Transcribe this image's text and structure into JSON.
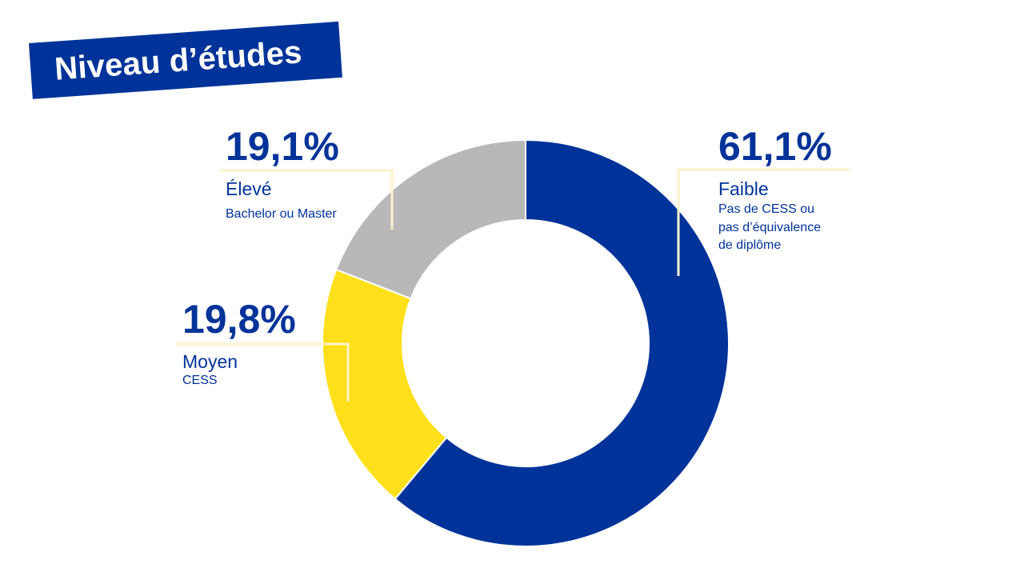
{
  "title": "Niveau d’études",
  "colors": {
    "faible": "#003399",
    "moyen": "#FFE01B",
    "eleve": "#B8B8B8",
    "leader": "#FFF2CC",
    "text": "#003399"
  },
  "chart_data": {
    "type": "pie",
    "variant": "donut",
    "title": "Niveau d’études",
    "slices": [
      {
        "category": "Faible",
        "description": "Pas de CESS ou pas d’équivalence de diplôme",
        "value": 61.1,
        "label": "61,1%"
      },
      {
        "category": "Moyen",
        "description": "CESS",
        "value": 19.8,
        "label": "19,8%"
      },
      {
        "category": "Élevé",
        "description": "Bachelor ou Master",
        "value": 19.1,
        "label": "19,1%"
      }
    ]
  },
  "labels": {
    "faible": {
      "pct": "61,1%",
      "cat": "Faible",
      "desc": [
        "Pas de CESS ou",
        "pas d’équivalence",
        "de diplôme"
      ]
    },
    "moyen": {
      "pct": "19,8%",
      "cat": "Moyen",
      "desc": [
        "CESS"
      ]
    },
    "eleve": {
      "pct": "19,1%",
      "cat": "Élevé",
      "desc": [
        "Bachelor ou Master"
      ]
    }
  }
}
